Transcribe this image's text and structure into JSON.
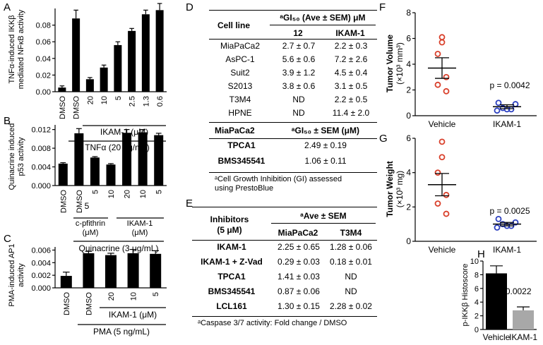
{
  "panels": {
    "A": {
      "letter": "A",
      "ylabel_1": "TNFα-induced IKKβ",
      "ylabel_2": "mediated NFκB activity",
      "group1": "IKAM-1 (μM)",
      "group2": "TNFα (20 ng/mL)"
    },
    "B": {
      "letter": "B",
      "ylabel_1": "Quinacrine induced",
      "ylabel_2": "p53 activity",
      "group_a_1": "c-pfithrin",
      "group_a_2": "(μM)",
      "group_b_1": "IKAM-1",
      "group_b_2": "(μM)",
      "group_main": "Quinacrine (3 μg/mL)"
    },
    "C": {
      "letter": "C",
      "ylabel_1": "PMA-induced AP1",
      "ylabel_2": "activity",
      "group1": "IKAM-1 (μM)",
      "group2": "PMA (5 ng/mL)"
    },
    "F": {
      "letter": "F",
      "ylabel_1": "Tumor Volume",
      "ylabel_2": "(×10³ mm³)",
      "pvalue": "p = 0.0042"
    },
    "G": {
      "letter": "G",
      "ylabel_1": "Tumor Weight",
      "ylabel_2": "(×10³ mg)",
      "pvalue": "p = 0.0025"
    },
    "H": {
      "letter": "H",
      "ylabel": "p-IKKβ Histoscore",
      "pvalue": "p = 0.0022"
    }
  },
  "chart_data": [
    {
      "panel": "A",
      "type": "bar",
      "categories": [
        "DMSO",
        "DMSO",
        "20",
        "10",
        "5",
        "2.5",
        "1.3",
        "0.6"
      ],
      "values": [
        0.005,
        0.088,
        0.015,
        0.029,
        0.056,
        0.073,
        0.093,
        0.098
      ],
      "errors": [
        0.002,
        0.01,
        0.002,
        0.003,
        0.004,
        0.003,
        0.005,
        0.008
      ],
      "ylim": [
        0,
        0.1
      ],
      "yticks": [
        "0.00",
        "0.02",
        "0.04",
        "0.06",
        "0.08"
      ],
      "ytick_values": [
        0,
        0.02,
        0.04,
        0.06,
        0.08
      ]
    },
    {
      "panel": "B",
      "type": "bar",
      "categories": [
        "DMSO",
        "DMSO",
        "5",
        "10",
        "20",
        "10",
        "5"
      ],
      "values": [
        0.0047,
        0.0112,
        0.006,
        0.0045,
        0.0113,
        0.0114,
        0.0108
      ],
      "errors": [
        0.0002,
        0.001,
        0.0002,
        0.0002,
        0.0007,
        0.0006,
        0.0004
      ],
      "ylim": [
        0,
        0.013
      ],
      "yticks": [
        "0.000",
        "0.004",
        "0.008",
        "0.012"
      ],
      "ytick_values": [
        0,
        0.004,
        0.008,
        0.012
      ]
    },
    {
      "panel": "C",
      "type": "bar",
      "categories": [
        "DMSO",
        "DMSO",
        "20",
        "10",
        "5"
      ],
      "values": [
        0.0019,
        0.0055,
        0.0052,
        0.0055,
        0.0054
      ],
      "errors": [
        0.0006,
        0.0003,
        0.0003,
        0.0006,
        0.0005
      ],
      "ylim": [
        0,
        0.0065
      ],
      "yticks": [
        "0.000",
        "0.002",
        "0.004",
        "0.006"
      ],
      "ytick_values": [
        0,
        0.002,
        0.004,
        0.006
      ]
    },
    {
      "panel": "F",
      "type": "scatter",
      "categories": [
        "Vehicle",
        "IKAM-1"
      ],
      "points": [
        [
          6.1,
          5.7,
          4.8,
          3.0,
          2.4,
          1.9
        ],
        [
          1.0,
          0.9,
          0.6,
          0.5,
          0.5,
          0.4
        ]
      ],
      "means": [
        3.7,
        0.7
      ],
      "sems": [
        0.8,
        0.15
      ],
      "colors": [
        "#d9402b",
        "#2b3fbf"
      ],
      "ylim": [
        0,
        8
      ],
      "yticks": [
        "0",
        "2",
        "4",
        "6",
        "8"
      ],
      "ytick_values": [
        0,
        2,
        4,
        6,
        8
      ]
    },
    {
      "panel": "G",
      "type": "scatter",
      "categories": [
        "Vehicle",
        "IKAM-1"
      ],
      "points": [
        [
          5.8,
          4.9,
          4.0,
          2.7,
          2.2,
          1.6
        ],
        [
          1.3,
          1.1,
          1.0,
          0.9,
          0.9,
          0.8
        ]
      ],
      "means": [
        3.3,
        1.0
      ],
      "sems": [
        0.65,
        0.1
      ],
      "colors": [
        "#d9402b",
        "#2b3fbf"
      ],
      "ylim": [
        0,
        6
      ],
      "yticks": [
        "0",
        "2",
        "4",
        "6"
      ],
      "ytick_values": [
        0,
        2,
        4,
        6
      ]
    },
    {
      "panel": "H",
      "type": "bar",
      "categories": [
        "Vehicle",
        "IKAM-1"
      ],
      "values": [
        8.2,
        2.8
      ],
      "errors": [
        1.1,
        0.5
      ],
      "colors": [
        "#000000",
        "#a8a8a8"
      ],
      "ylim": [
        0,
        10
      ],
      "yticks": [
        "0",
        "2",
        "4",
        "6",
        "8",
        "10"
      ],
      "ytick_values": [
        0,
        2,
        4,
        6,
        8,
        10
      ]
    }
  ],
  "tableD": {
    "letter": "D",
    "header": {
      "cell_line": "Cell line",
      "gi_header": "ᵃGI₅₀ (Ave ± SEM) μM",
      "col1": "12",
      "col2": "IKAM-1"
    },
    "rows": [
      {
        "cell": "MiaPaCa2",
        "a": "2.7 ± 0.7",
        "b": "2.2 ± 0.3"
      },
      {
        "cell": "AsPC-1",
        "a": "5.6 ± 0.6",
        "b": "7.2 ± 2.6"
      },
      {
        "cell": "Suit2",
        "a": "3.9 ± 1.2",
        "b": "4.5 ± 0.4"
      },
      {
        "cell": "S2013",
        "a": "3.8 ± 0.6",
        "b": "3.1 ± 0.5"
      },
      {
        "cell": "T3M4",
        "a": "ND",
        "b": "2.2 ± 0.5"
      },
      {
        "cell": "HPNE",
        "a": "ND",
        "b": "11.4 ± 2.0"
      }
    ],
    "sub_header": {
      "left": "MiaPaCa2",
      "right": "ᵃGI₅₀ ± SEM (μM)"
    },
    "sub_rows": [
      {
        "name": "TPCA1",
        "value": "2.49 ± 0.19"
      },
      {
        "name": "BMS345541",
        "value": "1.06 ± 0.11"
      }
    ],
    "footnote_1": "ᵃCell Growth Inhibition (GI) assessed",
    "footnote_2": "using PrestoBlue"
  },
  "tableE": {
    "letter": "E",
    "header": {
      "inhibitors_1": "Inhibitors",
      "inhibitors_2": "(5 μM)",
      "ave": "ᵃAve ± SEM",
      "col1": "MiaPaCa2",
      "col2": "T3M4"
    },
    "rows": [
      {
        "name": "IKAM-1",
        "a": "2.25 ± 0.65",
        "b": "1.28 ± 0.06"
      },
      {
        "name": "IKAM-1 + Z-Vad",
        "a": "0.29 ± 0.03",
        "b": "0.18 ± 0.01"
      },
      {
        "name": "TPCA1",
        "a": "1.41 ± 0.03",
        "b": "ND"
      },
      {
        "name": "BMS345541",
        "a": "0.87 ± 0.06",
        "b": "ND"
      },
      {
        "name": "LCL161",
        "a": "1.30 ± 0.15",
        "b": "2.28 ± 0.02"
      }
    ],
    "footnote": "ᵃCaspase 3/7 activity: Fold change / DMSO"
  }
}
